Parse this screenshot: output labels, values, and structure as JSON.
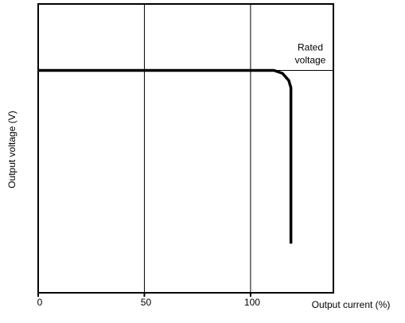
{
  "chart_data": {
    "type": "line",
    "x_label": "Output current (%)",
    "y_label": "Output voltage (V)",
    "xlim": [
      0,
      139
    ],
    "ylim": [
      0,
      100
    ],
    "xticks": [
      0,
      50,
      100
    ],
    "grid": true,
    "color": "#000000",
    "x": [
      0,
      111,
      115,
      118,
      119,
      119
    ],
    "values": [
      77,
      77,
      76,
      73.5,
      71,
      17
    ],
    "reference": {
      "value": 77,
      "label": [
        "Rated",
        "voltage"
      ]
    }
  }
}
